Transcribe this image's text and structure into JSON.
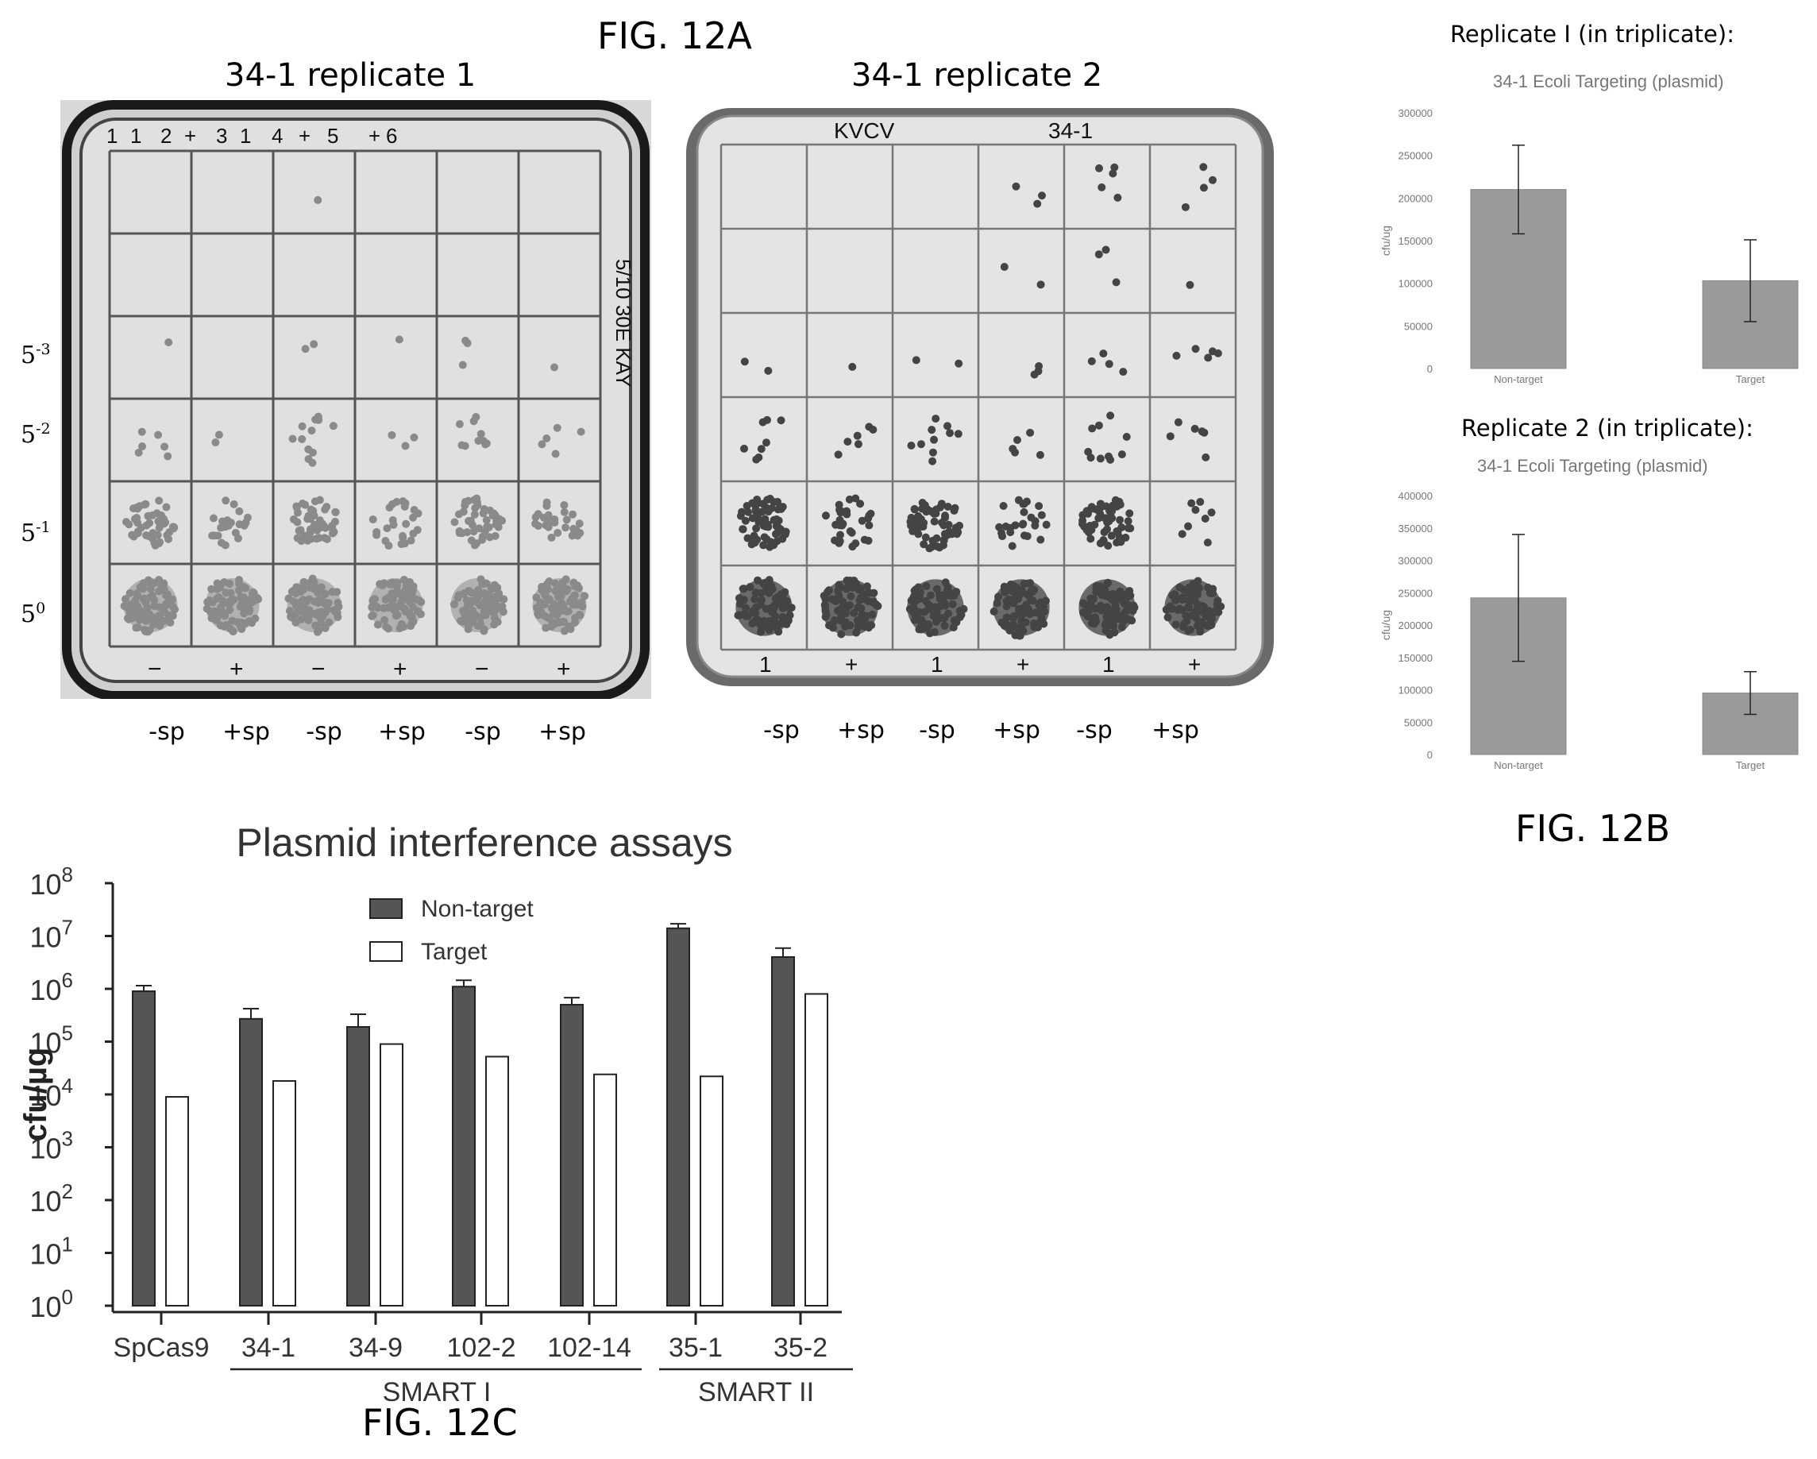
{
  "fig12a": {
    "label": "FIG. 12A",
    "plate1": {
      "title": "34-1 replicate 1",
      "top_marks": [
        "1",
        "1",
        "2",
        "+",
        "3",
        "1",
        "4",
        "+",
        "5",
        "+",
        "6"
      ],
      "bottom_marks": [
        "−",
        "+",
        "−",
        "+",
        "−",
        "+"
      ],
      "right_writing": "5/10 30E KAY",
      "sp_labels": [
        "-sp",
        "+sp",
        "-sp",
        "+sp",
        "-sp",
        "+sp"
      ]
    },
    "plate2": {
      "title": "34-1 replicate 2",
      "top_writing": "KVCV",
      "top_writing2": "34-1",
      "bottom_marks": [
        "1",
        "+",
        "1",
        "+",
        "1",
        "+"
      ],
      "sp_labels": [
        "-sp",
        "+sp",
        "-sp",
        "+sp",
        "-sp",
        "+sp"
      ]
    },
    "dilutions": [
      {
        "base": "5",
        "exp": "-3"
      },
      {
        "base": "5",
        "exp": "-2"
      },
      {
        "base": "5",
        "exp": "-1"
      },
      {
        "base": "5",
        "exp": "0"
      }
    ]
  },
  "fig12b": {
    "label": "FIG. 12B",
    "rep1_title": "Replicate I (in triplicate):",
    "rep2_title": "Replicate 2 (in triplicate):"
  },
  "fig12c": {
    "label": "FIG. 12C",
    "group1": "SMART I",
    "group2": "SMART II"
  },
  "chart_data": [
    {
      "type": "bar",
      "title": "34-1 Ecoli Targeting (plasmid)",
      "ylabel": "cfu/ug",
      "categories": [
        "Non-target",
        "Target"
      ],
      "values": [
        210000,
        103000
      ],
      "error": [
        52000,
        48000
      ],
      "ylim": [
        0,
        300000
      ],
      "yticks": [
        0,
        50000,
        100000,
        150000,
        200000,
        250000,
        300000
      ],
      "bar_color": "#9a9a9a"
    },
    {
      "type": "bar",
      "title": "34-1 Ecoli Targeting (plasmid)",
      "ylabel": "cfu/ug",
      "categories": [
        "Non-target",
        "Target"
      ],
      "values": [
        242000,
        95000
      ],
      "error": [
        98000,
        33000
      ],
      "ylim": [
        0,
        400000
      ],
      "yticks": [
        0,
        50000,
        100000,
        150000,
        200000,
        250000,
        300000,
        350000,
        400000
      ],
      "bar_color": "#9a9a9a"
    },
    {
      "type": "bar",
      "title": "Plasmid interference assays",
      "ylabel": "cfu/µg",
      "yscale": "log",
      "ylim": [
        1,
        100000000
      ],
      "yticks": [
        "10^0",
        "10^1",
        "10^2",
        "10^3",
        "10^4",
        "10^5",
        "10^6",
        "10^7",
        "10^8"
      ],
      "categories": [
        "SpCas9",
        "34-1",
        "34-9",
        "102-2",
        "102-14",
        "35-1",
        "35-2"
      ],
      "legend_placement": "top-center",
      "series": [
        {
          "name": "Non-target",
          "color": "#555555",
          "values": [
            900000,
            270000,
            190000,
            1100000,
            500000,
            14000000,
            4000000
          ],
          "error_top": [
            1150000,
            420000,
            330000,
            1450000,
            680000,
            17000000,
            5900000
          ]
        },
        {
          "name": "Target",
          "color": "#ffffff",
          "values": [
            9000,
            18000,
            90000,
            52000,
            24000,
            22000,
            800000
          ]
        }
      ]
    }
  ]
}
